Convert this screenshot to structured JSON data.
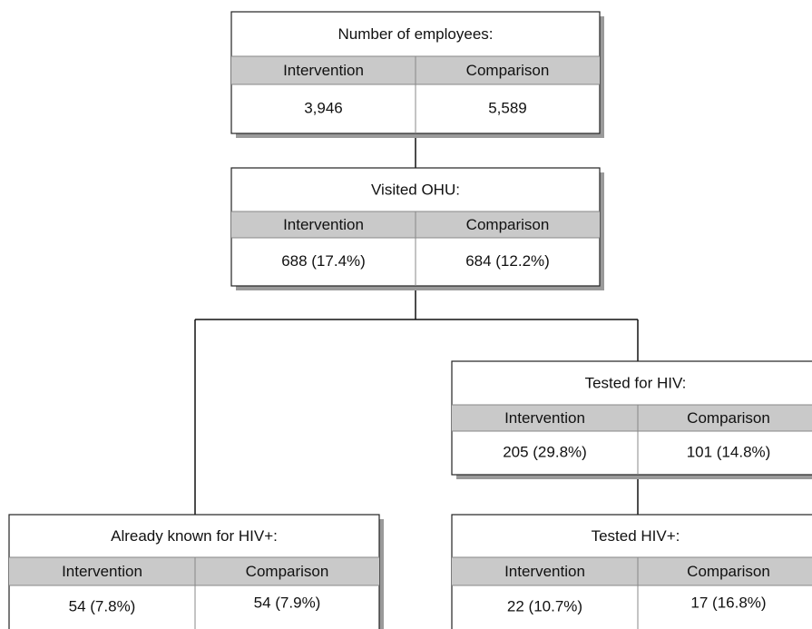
{
  "nodes": [
    {
      "title": "Number of employees:",
      "columns": [
        "Intervention",
        "Comparison"
      ],
      "values": [
        "3,946",
        "5,589"
      ]
    },
    {
      "title": "Visited OHU:",
      "columns": [
        "Intervention",
        "Comparison"
      ],
      "values": [
        "688 (17.4%)",
        "684 (12.2%)"
      ]
    },
    {
      "title": "Tested for HIV:",
      "columns": [
        "Intervention",
        "Comparison"
      ],
      "values": [
        "205 (29.8%)",
        "101 (14.8%)"
      ]
    },
    {
      "title": "Already known for HIV+:",
      "columns": [
        "Intervention",
        "Comparison"
      ],
      "values": [
        "54 (7.8%)",
        "54 (7.9%)"
      ]
    },
    {
      "title": "Tested HIV+:",
      "columns": [
        "Intervention",
        "Comparison"
      ],
      "values": [
        "22 (10.7%)",
        "17 (16.8%)"
      ]
    }
  ]
}
